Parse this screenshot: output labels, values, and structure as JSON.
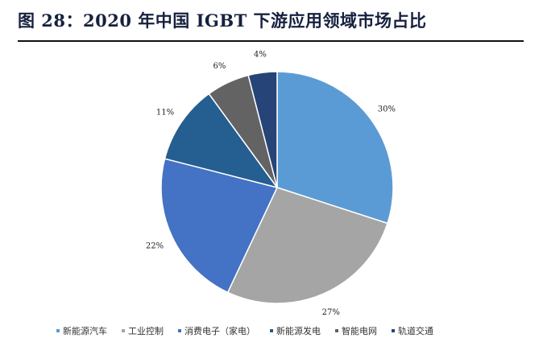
{
  "header": {
    "title": "图 28：2020 年中国 IGBT 下游应用领域市场占比"
  },
  "chart_data": {
    "type": "pie",
    "title": "",
    "categories": [
      "新能源汽车",
      "工业控制",
      "消费电子（家电）",
      "新能源发电",
      "智能电网",
      "轨道交通"
    ],
    "values": [
      30,
      27,
      22,
      11,
      6,
      4
    ],
    "labels": [
      "30%",
      "27%",
      "22%",
      "11%",
      "6%",
      "4%"
    ],
    "colors": [
      "#5b9bd5",
      "#a5a5a5",
      "#4472c4",
      "#255e91",
      "#636363",
      "#264478"
    ],
    "legend_position": "bottom",
    "start": "12 o'clock",
    "direction": "clockwise"
  }
}
